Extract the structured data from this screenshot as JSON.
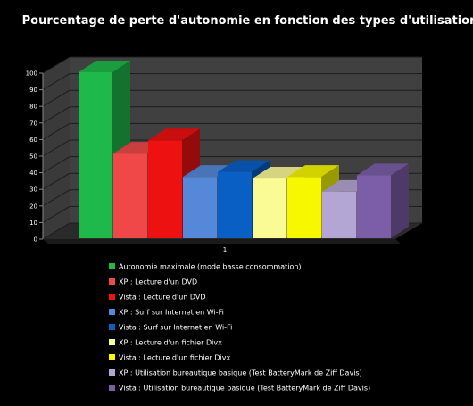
{
  "chart_data": {
    "type": "bar",
    "title": "Pourcentage de perte d'autonomie en fonction des types d'utilisation",
    "categories": [
      "1"
    ],
    "ylim": [
      0,
      100
    ],
    "yticks": [
      "0",
      "10",
      "20",
      "30",
      "40",
      "50",
      "60",
      "70",
      "80",
      "90",
      "100"
    ],
    "grid": true,
    "legend_position": "bottom",
    "series": [
      {
        "name": "Autonomie maximale (mode basse consommation)",
        "values": [
          100
        ],
        "color": "#1fb84a"
      },
      {
        "name": "XP : Lecture d'un DVD",
        "values": [
          51
        ],
        "color": "#f04848"
      },
      {
        "name": "Vista : Lecture d'un DVD",
        "values": [
          59
        ],
        "color": "#ee1111"
      },
      {
        "name": "XP : Surf sur Internet en Wi-Fi",
        "values": [
          37
        ],
        "color": "#5588d8"
      },
      {
        "name": "Vista : Surf sur Internet en Wi-Fi",
        "values": [
          40
        ],
        "color": "#0a5fc4"
      },
      {
        "name": "XP : Lecture d'un fichier Divx",
        "values": [
          36
        ],
        "color": "#fbfb96"
      },
      {
        "name": "Vista : Lecture d'un fichier Divx",
        "values": [
          37
        ],
        "color": "#f7f700"
      },
      {
        "name": "XP : Utilisation bureautique basique (Test BatteryMark de Ziff Davis)",
        "values": [
          28
        ],
        "color": "#b4a6d4"
      },
      {
        "name": "Vista : Utilisation bureautique basique (Test BatteryMark de Ziff Davis)",
        "values": [
          38
        ],
        "color": "#7c5ea8"
      }
    ]
  }
}
